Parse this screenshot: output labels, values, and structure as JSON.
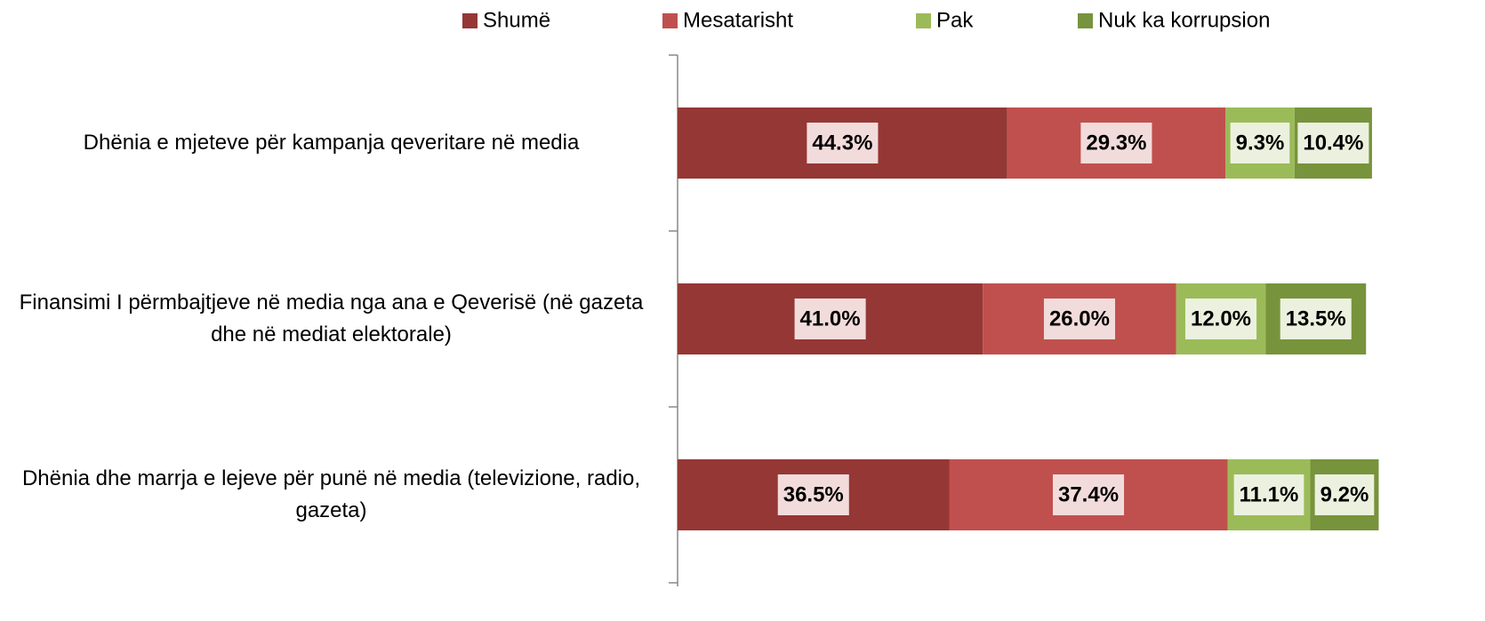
{
  "chart_data": {
    "type": "stacked-bar-horizontal",
    "categories": [
      "Dhënia e mjeteve për kampanja qeveritare në media",
      "Finansimi I përmbajtjeve në media nga ana e Qeverisë (në gazeta dhe në mediat elektorale)",
      "Dhënia dhe marrja e lejeve për punë në media (televizione, radio, gazeta)"
    ],
    "series": [
      {
        "name": "Shumë",
        "color": "#953735",
        "label_bg": "#f2dcdb",
        "values": [
          44.3,
          41.0,
          36.5
        ],
        "value_labels": [
          "44.3%",
          "41.0%",
          "36.5%"
        ]
      },
      {
        "name": "Mesatarisht",
        "color": "#c0504d",
        "label_bg": "#f2dcdb",
        "values": [
          29.3,
          26.0,
          37.4
        ],
        "value_labels": [
          "29.3%",
          "26.0%",
          "37.4%"
        ]
      },
      {
        "name": "Pak",
        "color": "#9bbb59",
        "label_bg": "#ebf1de",
        "values": [
          9.3,
          12.0,
          11.1
        ],
        "value_labels": [
          "9.3%",
          "12.0%",
          "11.1%"
        ]
      },
      {
        "name": "Nuk ka korrupsion",
        "color": "#77933c",
        "label_bg": "#ebf1de",
        "values": [
          10.4,
          13.5,
          9.2
        ],
        "value_labels": [
          "10.4%",
          "13.5%",
          "9.2%"
        ]
      }
    ],
    "xlim": [
      0,
      100
    ],
    "legend": "top"
  }
}
